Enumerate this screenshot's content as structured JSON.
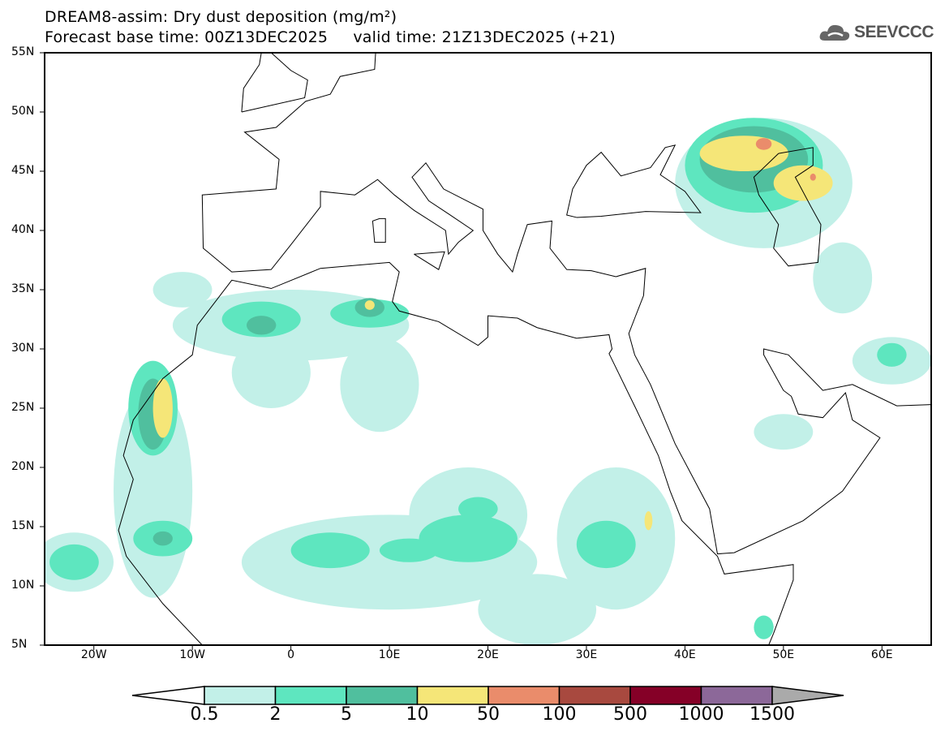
{
  "header": {
    "title": "DREAM8-assim: Dry dust deposition (mg/m²)",
    "subtitle": "Forecast base time: 00Z13DEC2025     valid time: 21Z13DEC2025 (+21)",
    "logo_text": "SEEVCCC",
    "logo_icon": "cloud-icon"
  },
  "map": {
    "lat_labels": [
      "55N",
      "50N",
      "45N",
      "40N",
      "35N",
      "30N",
      "25N",
      "20N",
      "15N",
      "10N",
      "5N"
    ],
    "lat_values": [
      55,
      50,
      45,
      40,
      35,
      30,
      25,
      20,
      15,
      10,
      5
    ],
    "lon_labels": [
      "20W",
      "10W",
      "0",
      "10E",
      "20E",
      "30E",
      "40E",
      "50E",
      "60E"
    ],
    "lon_values": [
      -20,
      -10,
      0,
      10,
      20,
      30,
      40,
      50,
      60
    ],
    "extent": {
      "lon": [
        -25,
        65
      ],
      "lat": [
        5,
        55
      ]
    }
  },
  "colorbar": {
    "labels": [
      "0.5",
      "2",
      "5",
      "10",
      "50",
      "100",
      "500",
      "1000",
      "1500"
    ],
    "colors": [
      "#c2f0e8",
      "#5ee6bf",
      "#50bf9e",
      "#f5e678",
      "#ea8c6b",
      "#a8493f",
      "#850027",
      "#8c6899"
    ],
    "over_color": "#aaaaaa",
    "under_color": "#ffffff"
  }
}
